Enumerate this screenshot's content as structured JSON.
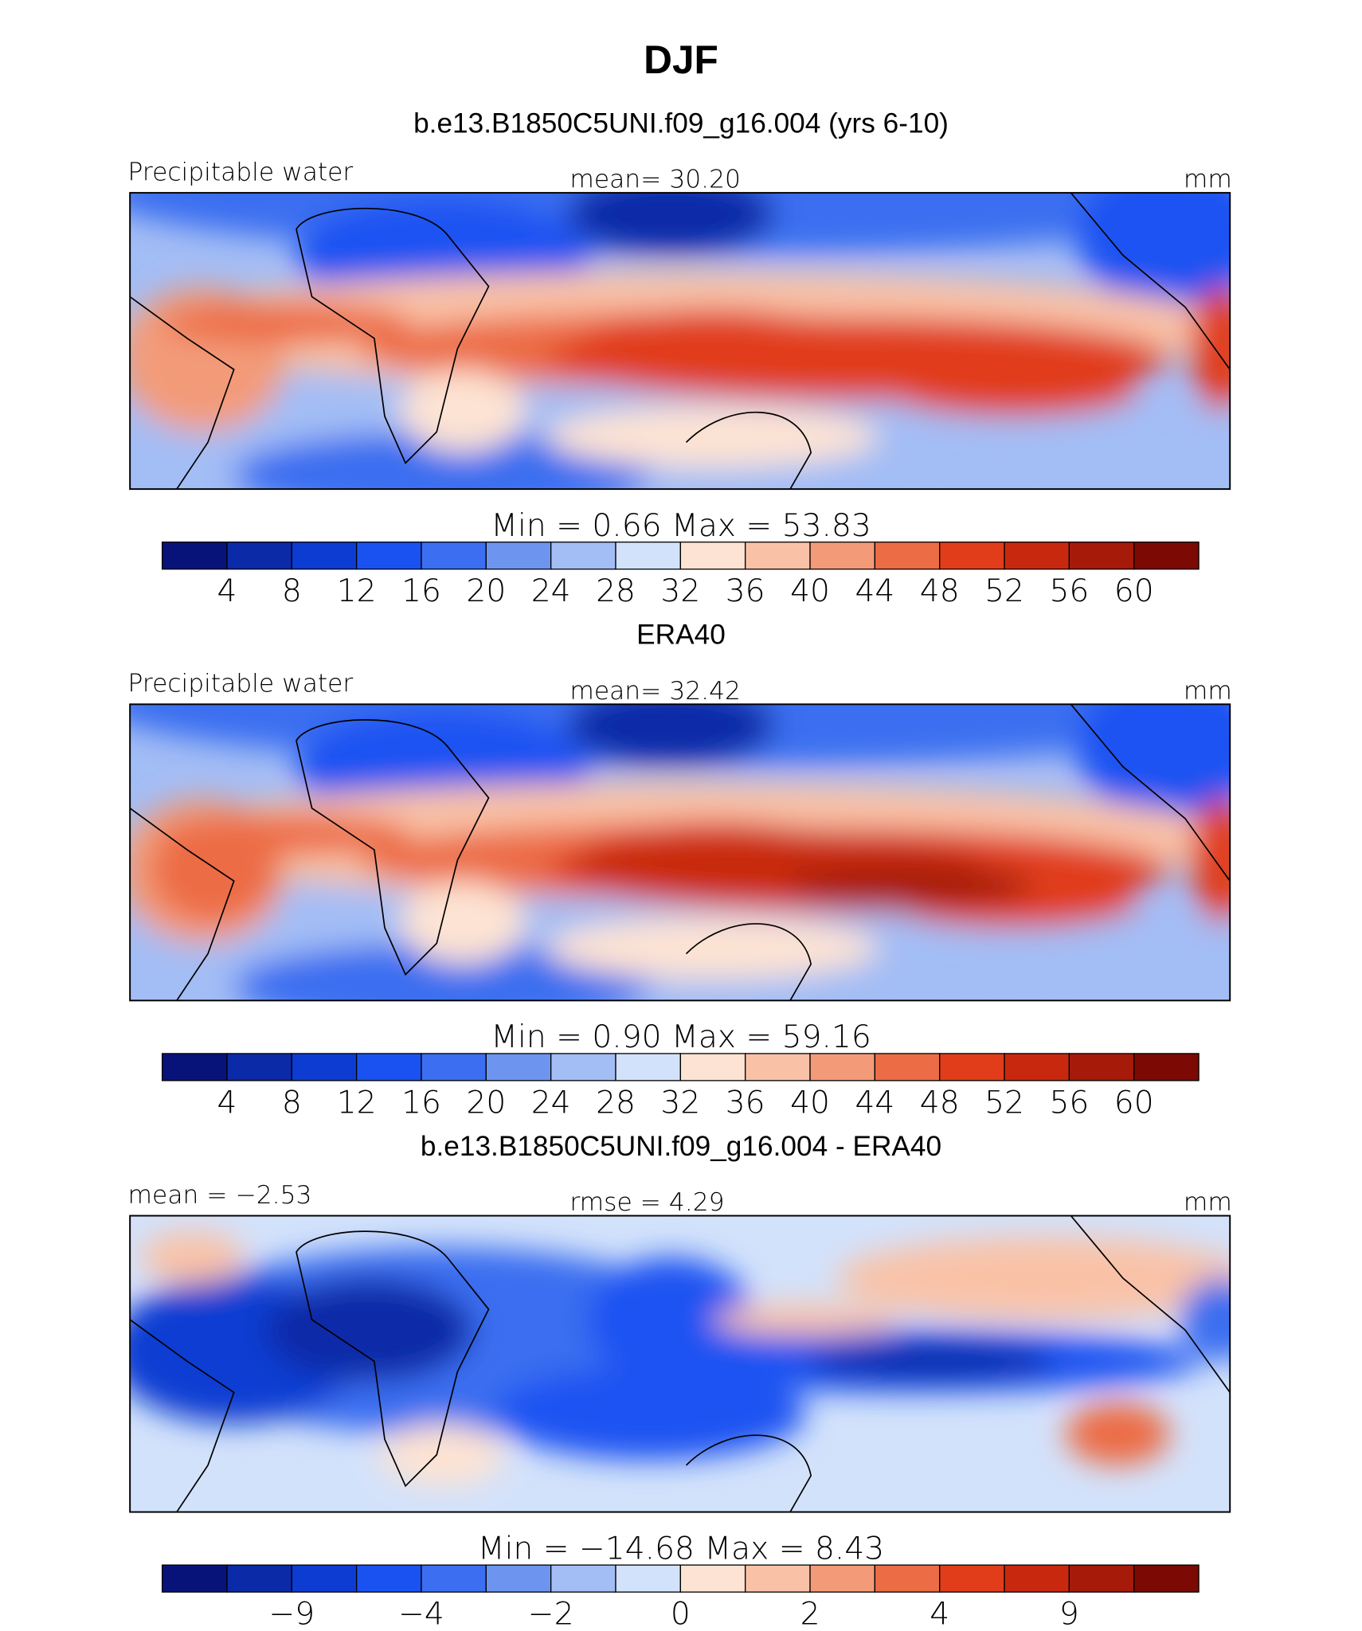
{
  "title": "DJF",
  "colors": [
    "#08137a",
    "#0a2aa8",
    "#0c3cd2",
    "#1a52f2",
    "#3b6ef0",
    "#6d95ef",
    "#a3bdf5",
    "#d3e2fb",
    "#fde3d3",
    "#f9c2a7",
    "#f39b79",
    "#ec6c45",
    "#e13d1a",
    "#c8290e",
    "#a51a08",
    "#7c0903"
  ],
  "panels": [
    {
      "title": "b.e13.B1850C5UNI.f09_g16.004 (yrs 6-10)",
      "left": "Precipitable water",
      "center": "mean=   30.20",
      "right": "mm",
      "minmax": "Min =     0.66  Max =    53.83",
      "levels": [
        "4",
        "8",
        "12",
        "16",
        "20",
        "24",
        "28",
        "32",
        "36",
        "40",
        "44",
        "48",
        "52",
        "56",
        "60"
      ]
    },
    {
      "title": "ERA40",
      "left": "Precipitable water",
      "center": "mean=   32.42",
      "right": "mm",
      "minmax": "Min =     0.90  Max =    59.16",
      "levels": [
        "4",
        "8",
        "12",
        "16",
        "20",
        "24",
        "28",
        "32",
        "36",
        "40",
        "44",
        "48",
        "52",
        "56",
        "60"
      ]
    },
    {
      "title": "b.e13.B1850C5UNI.f09_g16.004 - ERA40",
      "left": "mean =   −2.53",
      "center": "rmse =    4.29",
      "right": "mm",
      "minmax": "Min = −14.68  Max =     8.43",
      "levels": [
        "−9",
        "−4",
        "−2",
        "0",
        "2",
        "4",
        "9"
      ]
    }
  ]
}
